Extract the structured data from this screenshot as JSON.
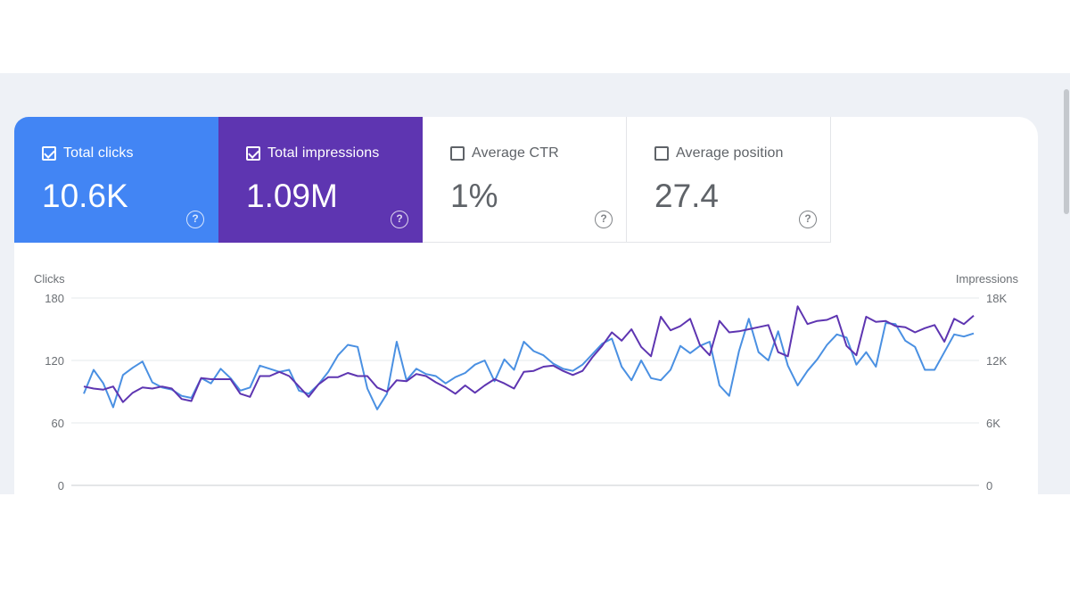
{
  "metrics": [
    {
      "label": "Total clicks",
      "value": "10.6K",
      "checked": true,
      "color": "#4285f4"
    },
    {
      "label": "Total impressions",
      "value": "1.09M",
      "checked": true,
      "color": "#5e35b1"
    },
    {
      "label": "Average CTR",
      "value": "1%",
      "checked": false,
      "color": "#ffffff"
    },
    {
      "label": "Average position",
      "value": "27.4",
      "checked": false,
      "color": "#ffffff"
    }
  ],
  "help_glyph": "?",
  "chart_data": {
    "type": "line",
    "left_axis": {
      "title": "Clicks",
      "ticks": [
        "0",
        "60",
        "120",
        "180"
      ],
      "range": [
        0,
        180
      ]
    },
    "right_axis": {
      "title": "Impressions",
      "ticks": [
        "0",
        "6K",
        "12K",
        "18K"
      ],
      "range": [
        0,
        18000
      ]
    },
    "grid": true,
    "series": [
      {
        "color": "#4a90e2",
        "axis": "left",
        "values": [
          88,
          111,
          98,
          75,
          106,
          113,
          119,
          99,
          94,
          92,
          86,
          84,
          103,
          98,
          112,
          103,
          91,
          94,
          115,
          112,
          109,
          111,
          91,
          88,
          97,
          109,
          125,
          135,
          133,
          93,
          73,
          88,
          138,
          101,
          112,
          107,
          105,
          98,
          104,
          108,
          116,
          120,
          100,
          121,
          111,
          138,
          129,
          125,
          117,
          112,
          110,
          116,
          126,
          136,
          141,
          114,
          101,
          120,
          103,
          101,
          111,
          134,
          127,
          134,
          138,
          96,
          86,
          129,
          160,
          128,
          120,
          148,
          115,
          96,
          110,
          121,
          135,
          145,
          142,
          116,
          128,
          114,
          156,
          155,
          139,
          133,
          111,
          111,
          128,
          145,
          143,
          146
        ]
      },
      {
        "color": "#5e35b1",
        "axis": "right",
        "values": [
          9500,
          9300,
          9200,
          9500,
          8000,
          8900,
          9400,
          9300,
          9500,
          9300,
          8300,
          8100,
          10300,
          10200,
          10200,
          10200,
          8800,
          8500,
          10500,
          10500,
          10900,
          10500,
          9500,
          8500,
          9700,
          10400,
          10400,
          10800,
          10500,
          10500,
          9400,
          9000,
          10100,
          10000,
          10700,
          10500,
          9900,
          9400,
          8800,
          9600,
          8900,
          9600,
          10200,
          9800,
          9300,
          10900,
          11000,
          11400,
          11500,
          11000,
          10600,
          11000,
          12300,
          13400,
          14700,
          13900,
          15000,
          13300,
          12400,
          16200,
          14900,
          15300,
          16000,
          13500,
          12500,
          15800,
          14700,
          14800,
          15000,
          15200,
          15400,
          12800,
          12400,
          17200,
          15500,
          15800,
          15900,
          16300,
          13400,
          12500,
          16200,
          15700,
          15800,
          15300,
          15200,
          14700,
          15100,
          15400,
          13800,
          16000,
          15500,
          16300
        ]
      }
    ]
  }
}
